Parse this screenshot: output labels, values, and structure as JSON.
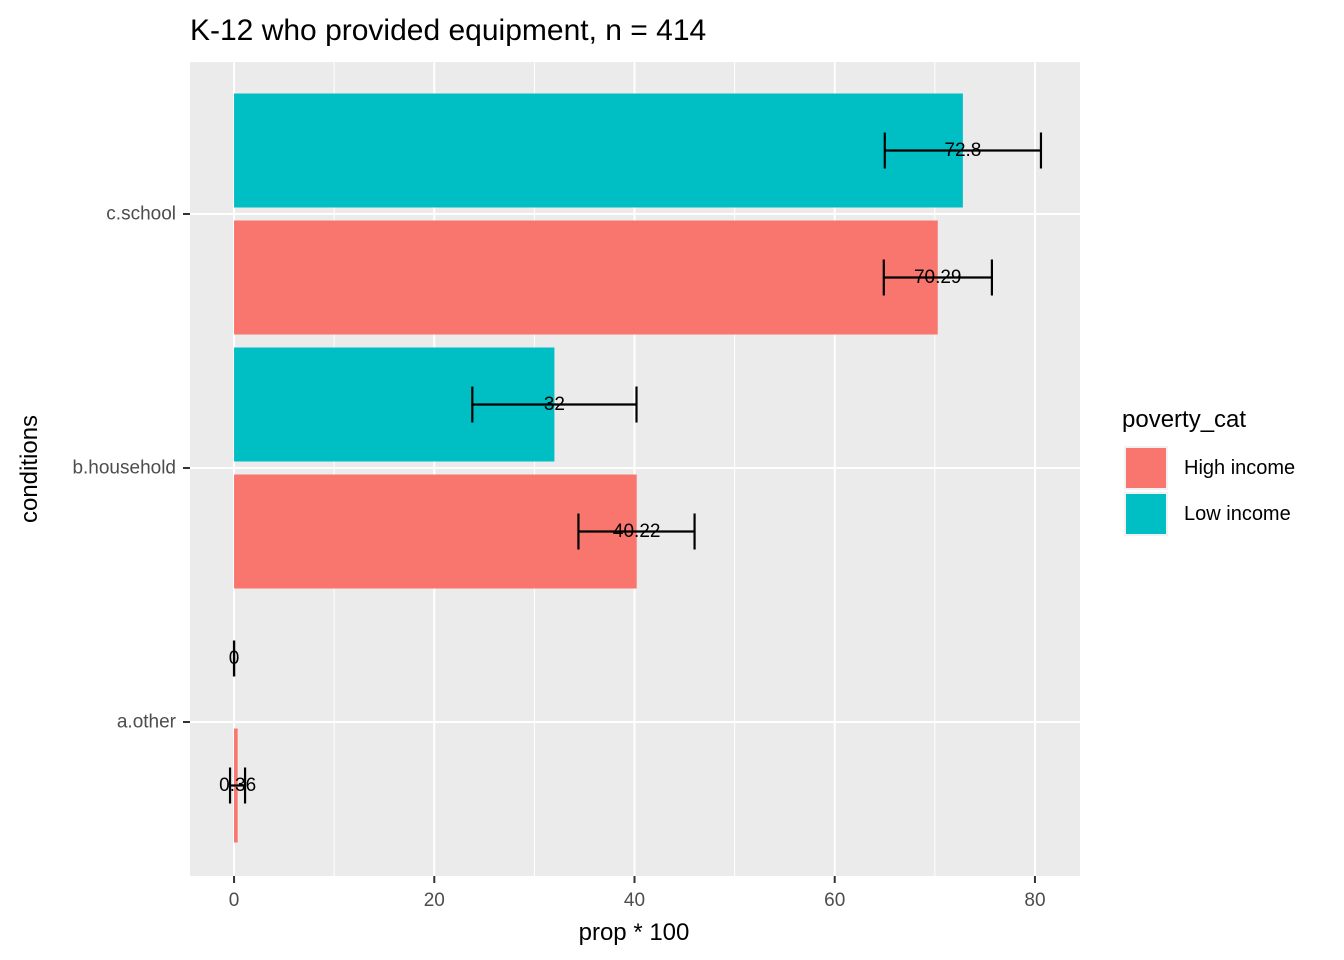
{
  "chart_data": {
    "type": "bar",
    "orientation": "horizontal",
    "title": "K-12 who provided equipment, n = 414",
    "xlabel": "prop * 100",
    "ylabel": "conditions",
    "categories": [
      "a.other",
      "b.household",
      "c.school"
    ],
    "xlim": [
      -4.4,
      84.5
    ],
    "xticks": [
      0,
      20,
      40,
      60,
      80
    ],
    "grid": true,
    "legend": {
      "title": "poverty_cat",
      "position": "right",
      "entries": [
        "High income",
        "Low income"
      ]
    },
    "series": [
      {
        "name": "High income",
        "color": "#F8766D",
        "values": [
          0.36,
          40.22,
          70.29
        ],
        "labels": [
          "0.36",
          "40.22",
          "70.29"
        ],
        "error_low": [
          -0.4,
          34.4,
          64.9
        ],
        "error_high": [
          1.1,
          46.0,
          75.7
        ]
      },
      {
        "name": "Low income",
        "color": "#00BFC4",
        "values": [
          0,
          32,
          72.8
        ],
        "labels": [
          "0",
          "32",
          "72.8"
        ],
        "error_low": [
          0,
          23.8,
          65.0
        ],
        "error_high": [
          0,
          40.2,
          80.6
        ]
      }
    ]
  }
}
